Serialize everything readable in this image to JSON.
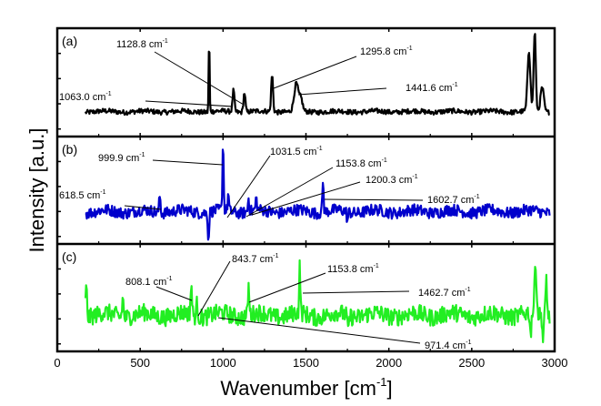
{
  "chart_data": {
    "type": "line",
    "xlabel": "Wavenumber [cm",
    "xlabel_sup": "-1",
    "xlabel_close": "]",
    "ylabel": "Intensity [a.u.]",
    "xlim": [
      0,
      3000
    ],
    "x_ticks": [
      0,
      500,
      1000,
      1500,
      2000,
      2500,
      3000
    ],
    "x_tick_labels": [
      "0",
      "500",
      "1000",
      "1500",
      "2000",
      "2500",
      "3000"
    ],
    "grid": false,
    "unit_suffix": " cm",
    "unit_sup": "-1",
    "panels": [
      {
        "label": "(a)",
        "color": "#000000",
        "x_range": [
          170,
          2970
        ],
        "baseline": 0.2,
        "noise": 0.025,
        "peaks": [
          {
            "x": 916,
            "h": 0.78,
            "w": 4
          },
          {
            "x": 1063.0,
            "h": 0.22,
            "w": 8
          },
          {
            "x": 1128.8,
            "h": 0.2,
            "w": 8
          },
          {
            "x": 1295.8,
            "h": 0.38,
            "w": 8
          },
          {
            "x": 1441.6,
            "h": 0.28,
            "w": 18
          },
          {
            "x": 1470,
            "h": 0.12,
            "w": 14
          },
          {
            "x": 2845,
            "h": 0.62,
            "w": 12
          },
          {
            "x": 2880,
            "h": 0.82,
            "w": 9
          },
          {
            "x": 2925,
            "h": 0.25,
            "w": 14
          }
        ],
        "annotations": [
          {
            "text": "1128.8",
            "peak_x": 1128.8
          },
          {
            "text": "1295.8",
            "peak_x": 1295.8
          },
          {
            "text": "1063.0",
            "peak_x": 1063.0
          },
          {
            "text": "1441.6",
            "peak_x": 1441.6
          }
        ]
      },
      {
        "label": "(b)",
        "color": "#0000cc",
        "x_range": [
          170,
          2970
        ],
        "baseline": 0.28,
        "noise": 0.06,
        "peaks": [
          {
            "x": 618.5,
            "h": 0.18,
            "w": 6
          },
          {
            "x": 912,
            "h": -0.3,
            "w": 5
          },
          {
            "x": 999.9,
            "h": 0.72,
            "w": 5
          },
          {
            "x": 1031.5,
            "h": 0.18,
            "w": 5
          },
          {
            "x": 1153.8,
            "h": 0.14,
            "w": 6
          },
          {
            "x": 1200.3,
            "h": 0.12,
            "w": 6
          },
          {
            "x": 1602.7,
            "h": 0.34,
            "w": 5
          },
          {
            "x": 1750,
            "h": -0.1,
            "w": 5
          }
        ],
        "annotations": [
          {
            "text": "999.9",
            "peak_x": 999.9
          },
          {
            "text": "1031.5",
            "peak_x": 1031.5
          },
          {
            "text": "1153.8",
            "peak_x": 1153.8
          },
          {
            "text": "1200.3",
            "peak_x": 1200.3
          },
          {
            "text": "618.5",
            "peak_x": 618.5
          },
          {
            "text": "1602.7",
            "peak_x": 1602.7
          }
        ]
      },
      {
        "label": "(c)",
        "color": "#22ee22",
        "x_range": [
          170,
          2970
        ],
        "baseline": 0.32,
        "noise": 0.09,
        "peaks": [
          {
            "x": 175,
            "h": 0.3,
            "w": 6
          },
          {
            "x": 395,
            "h": 0.2,
            "w": 6
          },
          {
            "x": 808.1,
            "h": 0.32,
            "w": 6
          },
          {
            "x": 843.7,
            "h": 0.14,
            "w": 6
          },
          {
            "x": 1153.8,
            "h": 0.3,
            "w": 6
          },
          {
            "x": 1462.7,
            "h": 0.48,
            "w": 5
          },
          {
            "x": 1755,
            "h": -0.2,
            "w": 5
          },
          {
            "x": 2885,
            "h": 0.55,
            "w": 8
          },
          {
            "x": 2950,
            "h": 0.42,
            "w": 6
          },
          {
            "x": 2855,
            "h": -0.25,
            "w": 5
          },
          {
            "x": 2930,
            "h": -0.25,
            "w": 5
          }
        ],
        "annotations": [
          {
            "text": "843.7",
            "peak_x": 843.7
          },
          {
            "text": "1153.8",
            "peak_x": 1153.8
          },
          {
            "text": "808.1",
            "peak_x": 808.1
          },
          {
            "text": "1462.7",
            "peak_x": 1462.7
          },
          {
            "text": "971.4",
            "peak_x": 971.4
          }
        ]
      }
    ]
  }
}
